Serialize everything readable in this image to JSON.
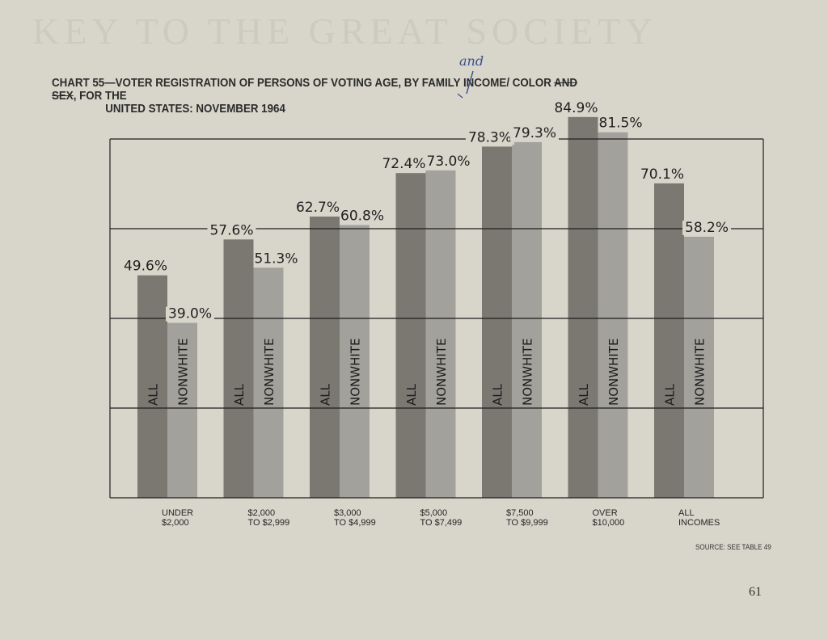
{
  "page": {
    "bleed_text": "KEY TO THE GREAT SOCIETY",
    "title_line1_a": "CHART 55—VOTER REGISTRATION OF PERSONS OF VOTING AGE, BY FAMILY INCOME/ COLOR ",
    "title_struck": "AND SEX",
    "title_line1_b": ", FOR THE",
    "title_line2": "UNITED STATES: NOVEMBER 1964",
    "handwritten_note": "and",
    "source": "SOURCE: SEE TABLE 49",
    "page_number": "61"
  },
  "chart_data": {
    "type": "bar",
    "title": "CHART 55—VOTER REGISTRATION OF PERSONS OF VOTING AGE, BY FAMILY INCOME/ COLOR, FOR THE UNITED STATES: NOVEMBER 1964",
    "categories": [
      [
        "UNDER",
        "$2,000"
      ],
      [
        "$2,000",
        "TO $2,999"
      ],
      [
        "$3,000",
        "TO $4,999"
      ],
      [
        "$5,000",
        "TO $7,499"
      ],
      [
        "$7,500",
        "TO $9,999"
      ],
      [
        "OVER",
        "$10,000"
      ],
      [
        "ALL",
        "INCOMES"
      ]
    ],
    "series": [
      {
        "name": "ALL",
        "values": [
          49.6,
          57.6,
          62.7,
          72.4,
          78.3,
          84.9,
          70.1
        ],
        "color": "#7b7872"
      },
      {
        "name": "NONWHITE",
        "values": [
          39.0,
          51.3,
          60.8,
          73.0,
          79.3,
          81.5,
          58.2
        ],
        "color": "#a3a19b"
      }
    ],
    "value_labels": {
      "ALL": [
        "49.6%",
        "57.6%",
        "62.7%",
        "72.4%",
        "78.3%",
        "84.9%",
        "70.1%"
      ],
      "NONWHITE": [
        "39.0%",
        "51.3%",
        "60.8%",
        "73.0%",
        "79.3%",
        "81.5%",
        "58.2%"
      ]
    },
    "ylim": [
      0,
      80
    ],
    "gridlines": [
      0,
      20,
      40,
      60,
      80
    ],
    "grid": true,
    "xlabel": "",
    "ylabel": ""
  }
}
